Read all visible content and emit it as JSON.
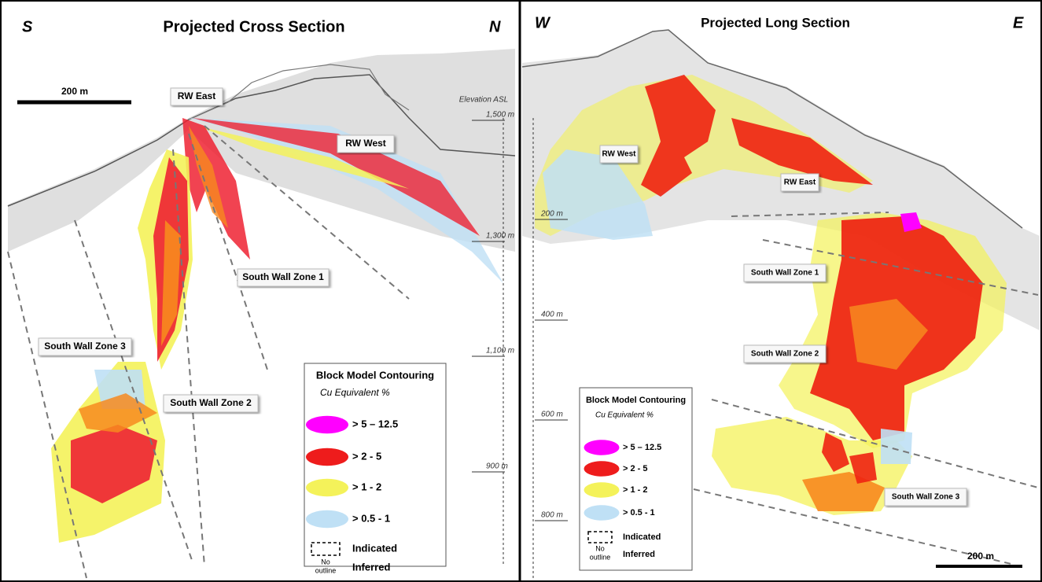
{
  "panels": [
    {
      "header": {
        "left": "S",
        "title": "Projected Cross Section",
        "right": "N"
      },
      "scale_bar": "200 m",
      "labels": [
        "RW East",
        "RW West",
        "South Wall Zone 1",
        "South Wall Zone 3",
        "South Wall Zone 2"
      ],
      "elevation": {
        "title": "Elevation ASL",
        "ticks": [
          "1,500 m",
          "1,300 m",
          "1,100 m",
          "900 m"
        ]
      },
      "legend": {
        "title": "Block Model Contouring",
        "subtitle": "Cu Equivalent %",
        "items": [
          {
            "label": "> 5 – 12.5",
            "color": "#ff00ff"
          },
          {
            "label": "> 2 - 5",
            "color": "#ee1c1c"
          },
          {
            "label": "> 1 - 2",
            "color": "#f4f25a"
          },
          {
            "label": "> 0.5 - 1",
            "color": "#bfe0f5"
          }
        ],
        "indicated": "Indicated",
        "no_outline": [
          "No",
          "outline"
        ],
        "inferred": "Inferred"
      }
    },
    {
      "header": {
        "left": "W",
        "title": "Projected Long Section",
        "right": "E"
      },
      "scale_bar": "200 m",
      "labels": [
        "RW West",
        "RW East",
        "South Wall Zone 1",
        "South Wall Zone 2",
        "South Wall Zone 3"
      ],
      "elevation": {
        "ticks": [
          "200 m",
          "400 m",
          "600 m",
          "800 m"
        ]
      },
      "legend": {
        "title": "Block Model Contouring",
        "subtitle": "Cu Equivalent %",
        "items": [
          {
            "label": "> 5 – 12.5",
            "color": "#ff00ff"
          },
          {
            "label": "> 2 - 5",
            "color": "#ee1c1c"
          },
          {
            "label": "> 1 - 2",
            "color": "#f4f25a"
          },
          {
            "label": "> 0.5 - 1",
            "color": "#bfe0f5"
          }
        ],
        "indicated": "Indicated",
        "no_outline": [
          "No",
          "outline"
        ],
        "inferred": "Inferred"
      }
    }
  ]
}
